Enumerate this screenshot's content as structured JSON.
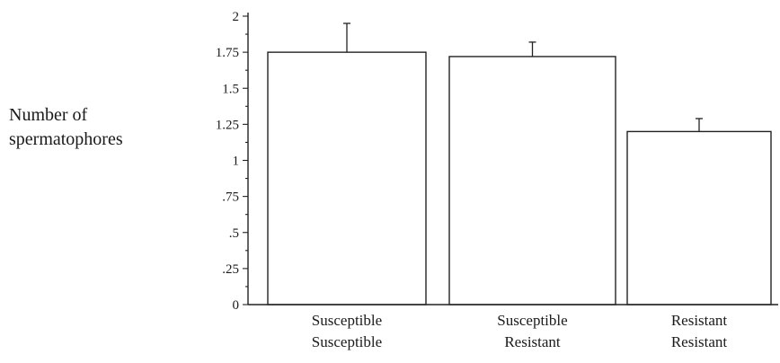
{
  "chart_data": {
    "type": "bar",
    "ylabel": [
      "Number of",
      "spermatophores"
    ],
    "categories": [
      [
        "Susceptible",
        "Susceptible"
      ],
      [
        "Susceptible",
        "Resistant"
      ],
      [
        "Resistant",
        "Resistant"
      ]
    ],
    "values": [
      1.75,
      1.72,
      1.2
    ],
    "error_upper": [
      1.95,
      1.82,
      1.29
    ],
    "ylim": [
      0,
      2
    ],
    "yticks": [
      0,
      0.25,
      0.5,
      0.75,
      1,
      1.25,
      1.5,
      1.75,
      2
    ],
    "ytick_labels": [
      "0",
      ".25",
      ".5",
      ".75",
      "1",
      "1.25",
      "1.5",
      "1.75",
      "2"
    ],
    "grid": false
  }
}
